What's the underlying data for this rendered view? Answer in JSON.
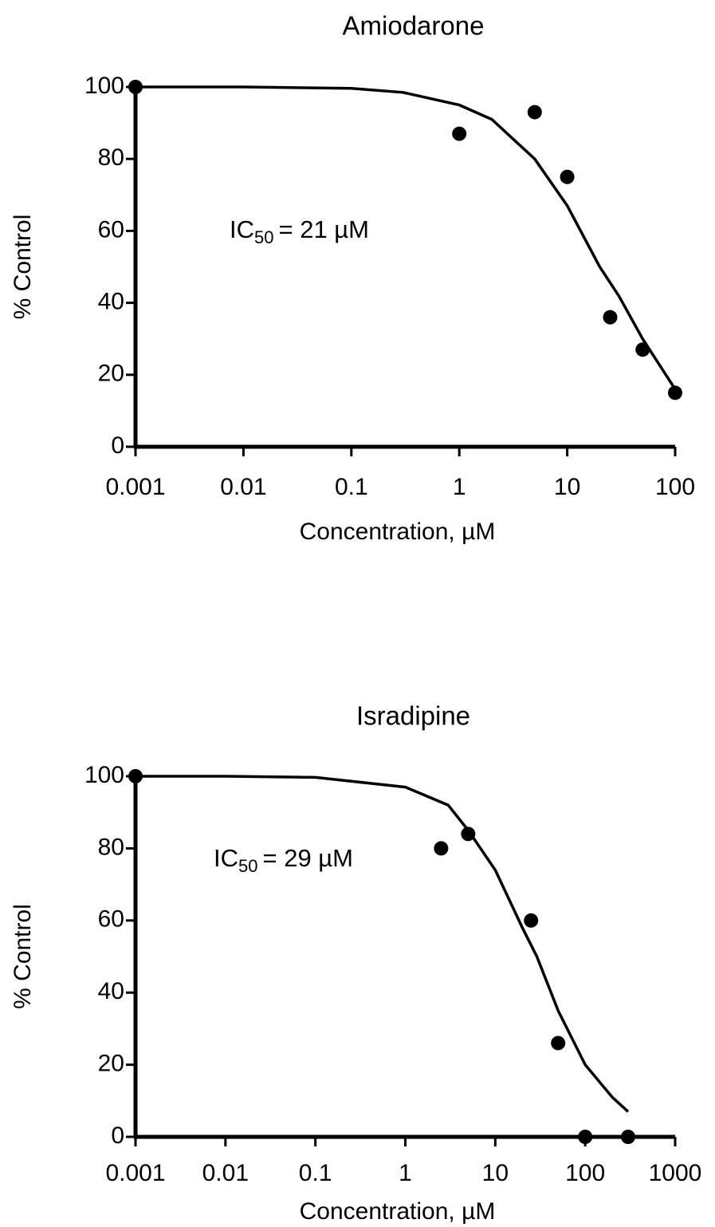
{
  "chart_data": [
    {
      "type": "scatter",
      "title": "Amiodarone",
      "xlabel": "Concentration,  µM",
      "ylabel": "% Control",
      "annotation": {
        "text": "IC",
        "subscript": "50",
        "rest": "= 21 µM"
      },
      "log_x": true,
      "color": "#000000",
      "xlim": [
        0.001,
        100
      ],
      "xticks": [
        0.001,
        0.01,
        0.1,
        1,
        10,
        100
      ],
      "ylim": [
        0,
        100
      ],
      "yticks": [
        0,
        20,
        40,
        60,
        80,
        100
      ],
      "points": {
        "x": [
          0.001,
          1,
          5,
          10,
          25,
          50,
          100
        ],
        "values": [
          100,
          87,
          93,
          75,
          36,
          27,
          15
        ]
      },
      "fit": {
        "x": [
          0.001,
          0.01,
          0.1,
          0.3,
          1,
          2,
          5,
          10,
          20,
          30,
          50,
          100
        ],
        "values": [
          100,
          100,
          99.6,
          98.5,
          95,
          91,
          80,
          67,
          50,
          42,
          30,
          16
        ]
      }
    },
    {
      "type": "scatter",
      "title": "Isradipine",
      "xlabel": "Concentration,  µM",
      "ylabel": "% Control",
      "annotation": {
        "text": "IC",
        "subscript": "50",
        "rest": "= 29 µM"
      },
      "log_x": true,
      "color": "#000000",
      "xlim": [
        0.001,
        1000
      ],
      "xticks": [
        0.001,
        0.01,
        0.1,
        1,
        10,
        100,
        1000
      ],
      "ylim": [
        0,
        100
      ],
      "yticks": [
        0,
        20,
        40,
        60,
        80,
        100
      ],
      "points": {
        "x": [
          0.001,
          2.5,
          5,
          25,
          50,
          100,
          300
        ],
        "values": [
          100,
          80,
          84,
          60,
          26,
          0,
          0
        ]
      },
      "fit": {
        "x": [
          0.001,
          0.01,
          0.1,
          1,
          3,
          5,
          10,
          20,
          29,
          50,
          100,
          200,
          300
        ],
        "values": [
          100,
          100,
          99.7,
          97,
          92,
          85,
          74,
          58,
          50,
          35,
          20,
          11,
          7
        ]
      }
    }
  ]
}
